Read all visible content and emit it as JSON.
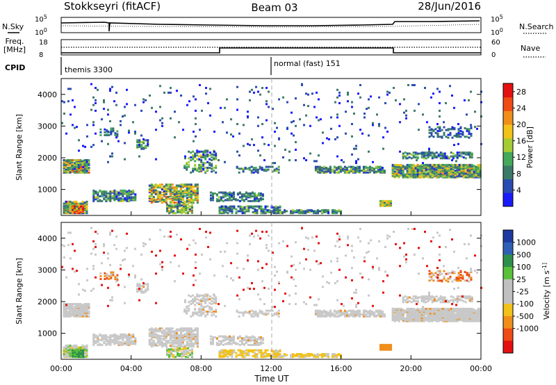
{
  "header": {
    "title": "Stokkseyri (fitACF)",
    "beam": "Beam 03",
    "date": "28/Jun/2016"
  },
  "noise_panel": {
    "left_label": "N.Sky",
    "right_label": "N.Search",
    "left_ticks": [
      "10^5",
      "10^0"
    ],
    "right_ticks": [
      "10^5",
      "10^0"
    ]
  },
  "freq_panel": {
    "left_label_line1": "Freq.",
    "left_label_line2": "[MHz]",
    "right_label": "Nave",
    "left_ticks": [
      "18",
      "8"
    ],
    "right_ticks": [
      "60",
      "0"
    ]
  },
  "cpid_panel": {
    "label": "CPID",
    "segments": [
      {
        "name": "themis 3300"
      },
      {
        "name": "normal (fast) 151"
      }
    ]
  },
  "x_axis": {
    "label": "Time UT",
    "ticks": [
      "00:00",
      "04:00",
      "08:00",
      "12:00",
      "16:00",
      "20:00",
      "00:00"
    ]
  },
  "colors": {
    "power_scale": [
      "#1a1aff",
      "#2a4bb0",
      "#3c7a68",
      "#45a85a",
      "#a6cc35",
      "#f2c21a",
      "#f08e1a",
      "#ef4b14",
      "#e41010"
    ],
    "velocity_scale": [
      "#1d3aa0",
      "#2f5fb5",
      "#2f8f4a",
      "#58c03a",
      "#c0c0c0",
      "#c0c0c0",
      "#f2c21a",
      "#f08e1a",
      "#ef4b14",
      "#e41010"
    ],
    "ground_scatter": "#c8c8c8"
  },
  "chart_data": [
    {
      "type": "heatmap",
      "panel": "power",
      "xlabel": "",
      "ylabel": "Slant Range [km]",
      "xlim": [
        0,
        24
      ],
      "ylim": [
        180,
        4500
      ],
      "yticks": [
        "1000",
        "2000",
        "3000",
        "4000"
      ],
      "colorbar": {
        "label": "Power [dB]",
        "ticks": [
          "4",
          "8",
          "12",
          "16",
          "20",
          "24",
          "28"
        ],
        "range": [
          0,
          30
        ]
      }
    },
    {
      "type": "heatmap",
      "panel": "velocity",
      "xlabel": "Time UT",
      "ylabel": "Slant Range [km]",
      "xlim": [
        0,
        24
      ],
      "ylim": [
        180,
        4500
      ],
      "yticks": [
        "1000",
        "2000",
        "3000",
        "4000"
      ],
      "colorbar": {
        "label": "Velocity [m s^-1]",
        "ticks": [
          "1000",
          "500",
          "100",
          "25",
          "-25",
          "-100",
          "-500",
          "-1000"
        ]
      }
    }
  ]
}
